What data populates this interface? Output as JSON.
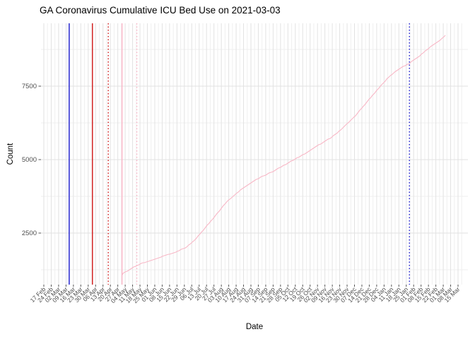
{
  "page": {
    "title": "GA Coronavirus Cumulative ICU Bed Use on 2021-03-03"
  },
  "chart_data": {
    "type": "line",
    "title": "GA Coronavirus Cumulative ICU Bed Use on 2021-03-03",
    "xlabel": "Date",
    "ylabel": "Count",
    "legend_position": "none",
    "grid": true,
    "background": "#ffffff",
    "grid_major_color": "#e2e2e2",
    "grid_minor_color": "#efefef",
    "tick_label_color": "#4d4d4d",
    "line_color": "#f8b7c6",
    "x_tick_start": "2020-02-17",
    "x_tick_interval_days": 7,
    "x_tick_labels": [
      "17 Feb",
      "24 Feb",
      "02 Mar",
      "09 Mar",
      "16 Mar",
      "23 Mar",
      "30 Mar",
      "06 Apr",
      "13 Apr",
      "20 Apr",
      "27 Apr",
      "04 May",
      "11 May",
      "18 May",
      "25 May",
      "01 Jun",
      "08 Jun",
      "15 Jun",
      "22 Jun",
      "29 Jun",
      "06 Jul",
      "13 Jul",
      "20 Jul",
      "27 Jul",
      "03 Aug",
      "10 Aug",
      "17 Aug",
      "24 Aug",
      "31 Aug",
      "07 Sep",
      "14 Sep",
      "21 Sep",
      "28 Sep",
      "05 Oct",
      "12 Oct",
      "19 Oct",
      "26 Oct",
      "02 Nov",
      "09 Nov",
      "16 Nov",
      "23 Nov",
      "30 Nov",
      "07 Dec",
      "14 Dec",
      "21 Dec",
      "28 Dec",
      "04 Jan",
      "11 Jan",
      "18 Jan",
      "25 Jan",
      "01 Feb",
      "08 Feb",
      "15 Feb",
      "22 Feb",
      "01 Mar",
      "08 Mar",
      "15 Mar"
    ],
    "x_domain": [
      "2020-02-14",
      "2021-03-24"
    ],
    "ylim": [
      745,
      9640
    ],
    "y_major_ticks": [
      2500,
      5000,
      7500
    ],
    "y_minor_ticks": [
      1250,
      3750,
      6250,
      8750
    ],
    "vlines": [
      {
        "date": "2020-03-12",
        "color": "#1b1bd1",
        "style": "solid"
      },
      {
        "date": "2020-04-03",
        "color": "#d01616",
        "style": "solid"
      },
      {
        "date": "2020-04-18",
        "color": "#d01616",
        "style": "dotted"
      },
      {
        "date": "2020-05-01",
        "color": "#fab4c6",
        "style": "solid"
      },
      {
        "date": "2020-05-15",
        "color": "#fab4c6",
        "style": "dotted"
      },
      {
        "date": "2021-01-28",
        "color": "#1b1bd1",
        "style": "dotted"
      }
    ],
    "series": [
      {
        "name": "cumulative-icu-bed-use",
        "points": [
          [
            "2020-05-01",
            1050
          ],
          [
            "2020-05-02",
            1130
          ],
          [
            "2020-05-04",
            1170
          ],
          [
            "2020-05-08",
            1250
          ],
          [
            "2020-05-15",
            1400
          ],
          [
            "2020-05-22",
            1500
          ],
          [
            "2020-06-01",
            1620
          ],
          [
            "2020-06-08",
            1700
          ],
          [
            "2020-06-15",
            1780
          ],
          [
            "2020-06-22",
            1870
          ],
          [
            "2020-07-01",
            2020
          ],
          [
            "2020-07-08",
            2230
          ],
          [
            "2020-07-15",
            2520
          ],
          [
            "2020-07-22",
            2820
          ],
          [
            "2020-08-01",
            3250
          ],
          [
            "2020-08-08",
            3560
          ],
          [
            "2020-08-15",
            3780
          ],
          [
            "2020-08-22",
            4000
          ],
          [
            "2020-09-01",
            4230
          ],
          [
            "2020-09-08",
            4380
          ],
          [
            "2020-09-15",
            4500
          ],
          [
            "2020-09-22",
            4620
          ],
          [
            "2020-10-01",
            4800
          ],
          [
            "2020-10-08",
            4950
          ],
          [
            "2020-10-15",
            5080
          ],
          [
            "2020-10-22",
            5220
          ],
          [
            "2020-11-01",
            5450
          ],
          [
            "2020-11-08",
            5600
          ],
          [
            "2020-11-15",
            5750
          ],
          [
            "2020-11-22",
            5950
          ],
          [
            "2020-12-01",
            6250
          ],
          [
            "2020-12-08",
            6500
          ],
          [
            "2020-12-15",
            6800
          ],
          [
            "2020-12-22",
            7100
          ],
          [
            "2021-01-01",
            7520
          ],
          [
            "2021-01-08",
            7800
          ],
          [
            "2021-01-15",
            8000
          ],
          [
            "2021-01-22",
            8170
          ],
          [
            "2021-01-28",
            8280
          ],
          [
            "2021-02-01",
            8380
          ],
          [
            "2021-02-08",
            8570
          ],
          [
            "2021-02-15",
            8780
          ],
          [
            "2021-02-22",
            8970
          ],
          [
            "2021-03-01",
            9150
          ],
          [
            "2021-03-03",
            9230
          ]
        ]
      }
    ]
  }
}
